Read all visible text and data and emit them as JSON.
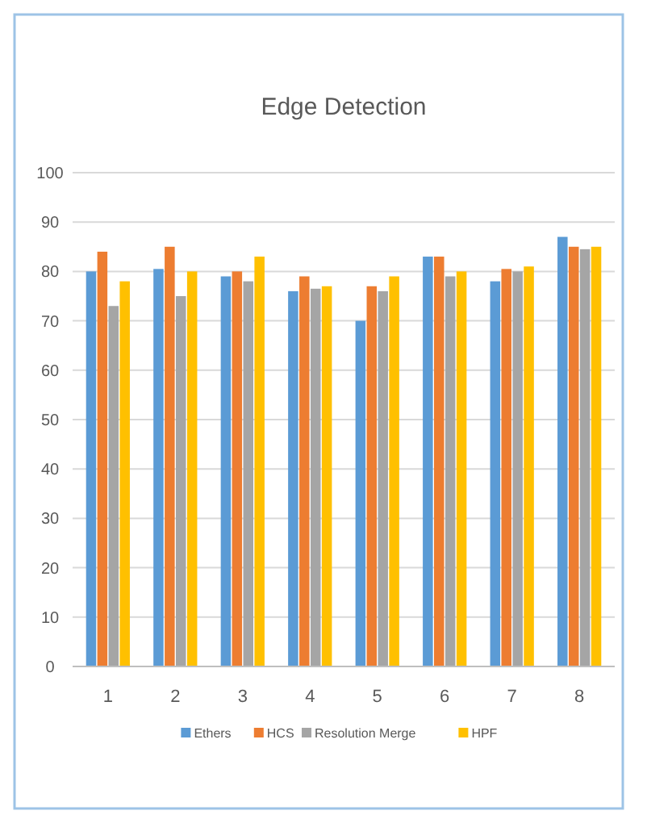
{
  "chart_data": {
    "type": "bar",
    "title": "Edge Detection",
    "categories": [
      "1",
      "2",
      "3",
      "4",
      "5",
      "6",
      "7",
      "8"
    ],
    "series": [
      {
        "name": "Ethers",
        "color": "#5b9bd5",
        "values": [
          80,
          80.5,
          79,
          76,
          70,
          83,
          78,
          87
        ]
      },
      {
        "name": "HCS",
        "color": "#ed7d31",
        "values": [
          84,
          85,
          80,
          79,
          77,
          83,
          80.5,
          85
        ]
      },
      {
        "name": "Resolution Merge",
        "color": "#a5a5a5",
        "values": [
          73,
          75,
          78,
          76.5,
          76,
          79,
          80,
          84.5
        ]
      },
      {
        "name": "HPF",
        "color": "#ffc000",
        "values": [
          78,
          80,
          83,
          77,
          79,
          80,
          81,
          85
        ]
      }
    ],
    "ylim": [
      0,
      100
    ],
    "yticks": [
      0,
      10,
      20,
      30,
      40,
      50,
      60,
      70,
      80,
      90,
      100
    ],
    "grid": "y",
    "legend": "bottom"
  }
}
